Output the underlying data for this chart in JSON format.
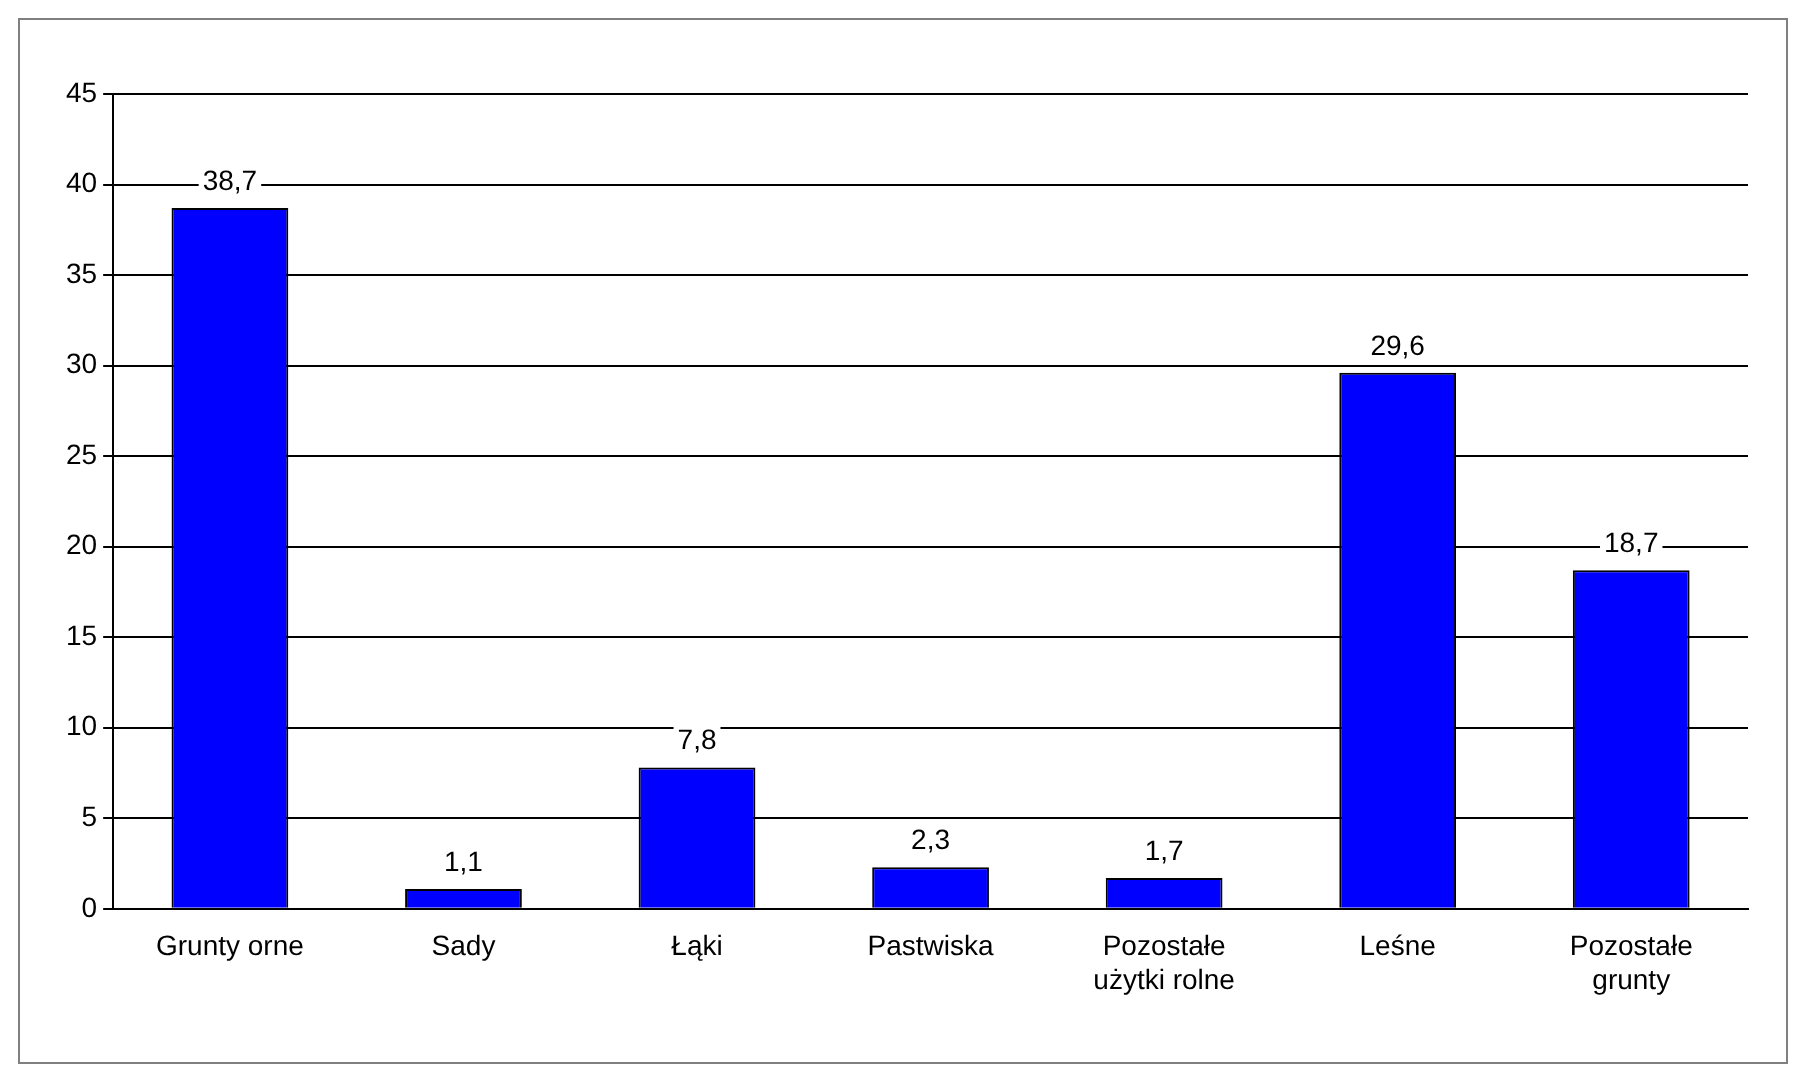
{
  "chart_data": {
    "type": "bar",
    "categories": [
      "Grunty orne",
      "Sady",
      "Łąki",
      "Pastwiska",
      "Pozostałe użytki rolne",
      "Leśne",
      "Pozostałe grunty"
    ],
    "values": [
      38.7,
      1.1,
      7.8,
      2.3,
      1.7,
      29.6,
      18.7
    ],
    "value_labels": [
      "38,7",
      "1,1",
      "7,8",
      "2,3",
      "1,7",
      "29,6",
      "18,7"
    ],
    "color": "#0000ff",
    "ylim": [
      0,
      45
    ],
    "yticks": [
      0,
      5,
      10,
      15,
      20,
      25,
      30,
      35,
      40,
      45
    ],
    "grid": "y",
    "legend": false
  }
}
